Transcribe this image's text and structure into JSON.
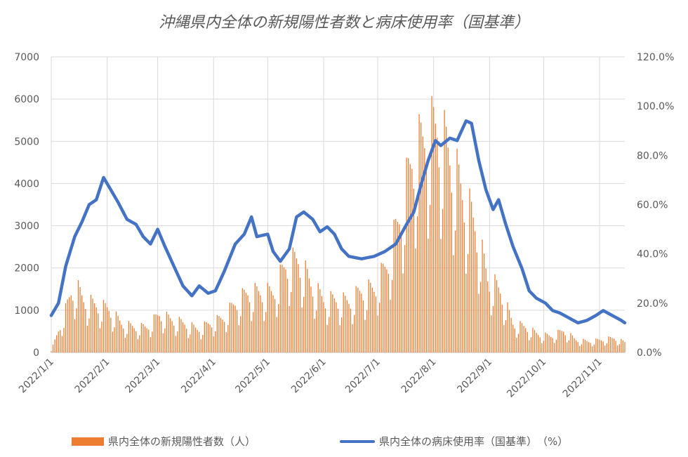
{
  "chart_data": {
    "type": "bar+line",
    "title": "沖縄県内全体の新規陽性者数と病床使用率（国基準）",
    "x_range": [
      "2022-01-01",
      "2022-11-15"
    ],
    "x_tick_labels": [
      "2022/1/1",
      "2022/2/1",
      "2022/3/1",
      "2022/4/1",
      "2022/5/1",
      "2022/6/1",
      "2022/7/1",
      "2022/8/1",
      "2022/9/1",
      "2022/10/1",
      "2022/11/1"
    ],
    "y_left": {
      "min": 0,
      "max": 7000,
      "ticks": [
        "0",
        "1000",
        "2000",
        "3000",
        "4000",
        "5000",
        "6000",
        "7000"
      ]
    },
    "y_right": {
      "min": 0,
      "max": 120,
      "ticks": [
        "0.0%",
        "20.0%",
        "40.0%",
        "60.0%",
        "80.0%",
        "100.0%",
        "120.0%"
      ]
    },
    "grid": "horizontal",
    "legend_position": "bottom",
    "series": [
      {
        "name": "県内全体の新規陽性者数（人）",
        "kind": "bar",
        "axis": "left",
        "color": "#ED7D31",
        "description": "daily new cases, weekly cycle; key weekly peaks",
        "points": [
          [
            "2022-01-01",
            50
          ],
          [
            "2022-01-05",
            600
          ],
          [
            "2022-01-08",
            1000
          ],
          [
            "2022-01-12",
            1650
          ],
          [
            "2022-01-15",
            1800
          ],
          [
            "2022-01-19",
            1450
          ],
          [
            "2022-01-26",
            1300
          ],
          [
            "2022-02-02",
            1200
          ],
          [
            "2022-02-09",
            800
          ],
          [
            "2022-02-16",
            700
          ],
          [
            "2022-02-23",
            700
          ],
          [
            "2022-03-02",
            1050
          ],
          [
            "2022-03-09",
            900
          ],
          [
            "2022-03-16",
            800
          ],
          [
            "2022-03-23",
            650
          ],
          [
            "2022-03-30",
            800
          ],
          [
            "2022-04-06",
            950
          ],
          [
            "2022-04-13",
            1350
          ],
          [
            "2022-04-20",
            1650
          ],
          [
            "2022-04-27",
            1650
          ],
          [
            "2022-05-04",
            1650
          ],
          [
            "2022-05-11",
            2400
          ],
          [
            "2022-05-18",
            2550
          ],
          [
            "2022-05-25",
            1900
          ],
          [
            "2022-06-01",
            1450
          ],
          [
            "2022-06-08",
            1450
          ],
          [
            "2022-06-15",
            1400
          ],
          [
            "2022-06-22",
            1700
          ],
          [
            "2022-06-29",
            1750
          ],
          [
            "2022-07-06",
            2400
          ],
          [
            "2022-07-13",
            3700
          ],
          [
            "2022-07-20",
            5300
          ],
          [
            "2022-07-27",
            5900
          ],
          [
            "2022-08-03",
            6200
          ],
          [
            "2022-08-10",
            5400
          ],
          [
            "2022-08-17",
            4400
          ],
          [
            "2022-08-24",
            3500
          ],
          [
            "2022-08-31",
            2050
          ],
          [
            "2022-09-07",
            1700
          ],
          [
            "2022-09-14",
            800
          ],
          [
            "2022-09-21",
            700
          ],
          [
            "2022-09-28",
            500
          ],
          [
            "2022-10-05",
            450
          ],
          [
            "2022-10-12",
            600
          ],
          [
            "2022-10-19",
            350
          ],
          [
            "2022-10-26",
            300
          ],
          [
            "2022-11-02",
            350
          ],
          [
            "2022-11-09",
            400
          ],
          [
            "2022-11-15",
            280
          ]
        ]
      },
      {
        "name": "県内全体の病床使用率（国基準）　（%）",
        "kind": "line",
        "axis": "right",
        "color": "#4472C4",
        "points": [
          [
            "2022-01-01",
            15
          ],
          [
            "2022-01-05",
            20
          ],
          [
            "2022-01-09",
            35
          ],
          [
            "2022-01-14",
            47
          ],
          [
            "2022-01-18",
            53
          ],
          [
            "2022-01-22",
            60
          ],
          [
            "2022-01-26",
            62
          ],
          [
            "2022-01-30",
            71
          ],
          [
            "2022-02-03",
            66
          ],
          [
            "2022-02-07",
            61
          ],
          [
            "2022-02-12",
            54
          ],
          [
            "2022-02-17",
            52
          ],
          [
            "2022-02-21",
            47
          ],
          [
            "2022-02-25",
            44
          ],
          [
            "2022-03-01",
            50
          ],
          [
            "2022-03-05",
            43
          ],
          [
            "2022-03-10",
            35
          ],
          [
            "2022-03-15",
            27
          ],
          [
            "2022-03-20",
            23
          ],
          [
            "2022-03-24",
            27
          ],
          [
            "2022-03-29",
            24
          ],
          [
            "2022-04-02",
            25
          ],
          [
            "2022-04-07",
            33
          ],
          [
            "2022-04-13",
            44
          ],
          [
            "2022-04-18",
            48
          ],
          [
            "2022-04-22",
            55
          ],
          [
            "2022-04-25",
            47
          ],
          [
            "2022-05-01",
            48
          ],
          [
            "2022-05-04",
            41
          ],
          [
            "2022-05-08",
            37
          ],
          [
            "2022-05-13",
            42
          ],
          [
            "2022-05-17",
            55
          ],
          [
            "2022-05-21",
            57
          ],
          [
            "2022-05-26",
            54
          ],
          [
            "2022-05-30",
            49
          ],
          [
            "2022-06-03",
            51
          ],
          [
            "2022-06-07",
            48
          ],
          [
            "2022-06-11",
            42
          ],
          [
            "2022-06-15",
            39
          ],
          [
            "2022-06-22",
            38
          ],
          [
            "2022-06-29",
            39
          ],
          [
            "2022-07-05",
            41
          ],
          [
            "2022-07-11",
            44
          ],
          [
            "2022-07-17",
            52
          ],
          [
            "2022-07-21",
            57
          ],
          [
            "2022-07-25",
            68
          ],
          [
            "2022-07-29",
            78
          ],
          [
            "2022-08-02",
            86
          ],
          [
            "2022-08-05",
            84
          ],
          [
            "2022-08-10",
            87
          ],
          [
            "2022-08-14",
            86
          ],
          [
            "2022-08-19",
            94
          ],
          [
            "2022-08-22",
            93
          ],
          [
            "2022-08-26",
            78
          ],
          [
            "2022-08-30",
            66
          ],
          [
            "2022-09-03",
            58
          ],
          [
            "2022-09-06",
            62
          ],
          [
            "2022-09-10",
            52
          ],
          [
            "2022-09-14",
            43
          ],
          [
            "2022-09-19",
            34
          ],
          [
            "2022-09-23",
            25
          ],
          [
            "2022-09-27",
            22
          ],
          [
            "2022-10-02",
            20
          ],
          [
            "2022-10-06",
            17
          ],
          [
            "2022-10-10",
            16
          ],
          [
            "2022-10-15",
            14
          ],
          [
            "2022-10-20",
            12
          ],
          [
            "2022-10-25",
            13
          ],
          [
            "2022-10-30",
            15
          ],
          [
            "2022-11-03",
            17
          ],
          [
            "2022-11-08",
            15
          ],
          [
            "2022-11-13",
            13
          ],
          [
            "2022-11-15",
            12
          ]
        ]
      }
    ]
  }
}
